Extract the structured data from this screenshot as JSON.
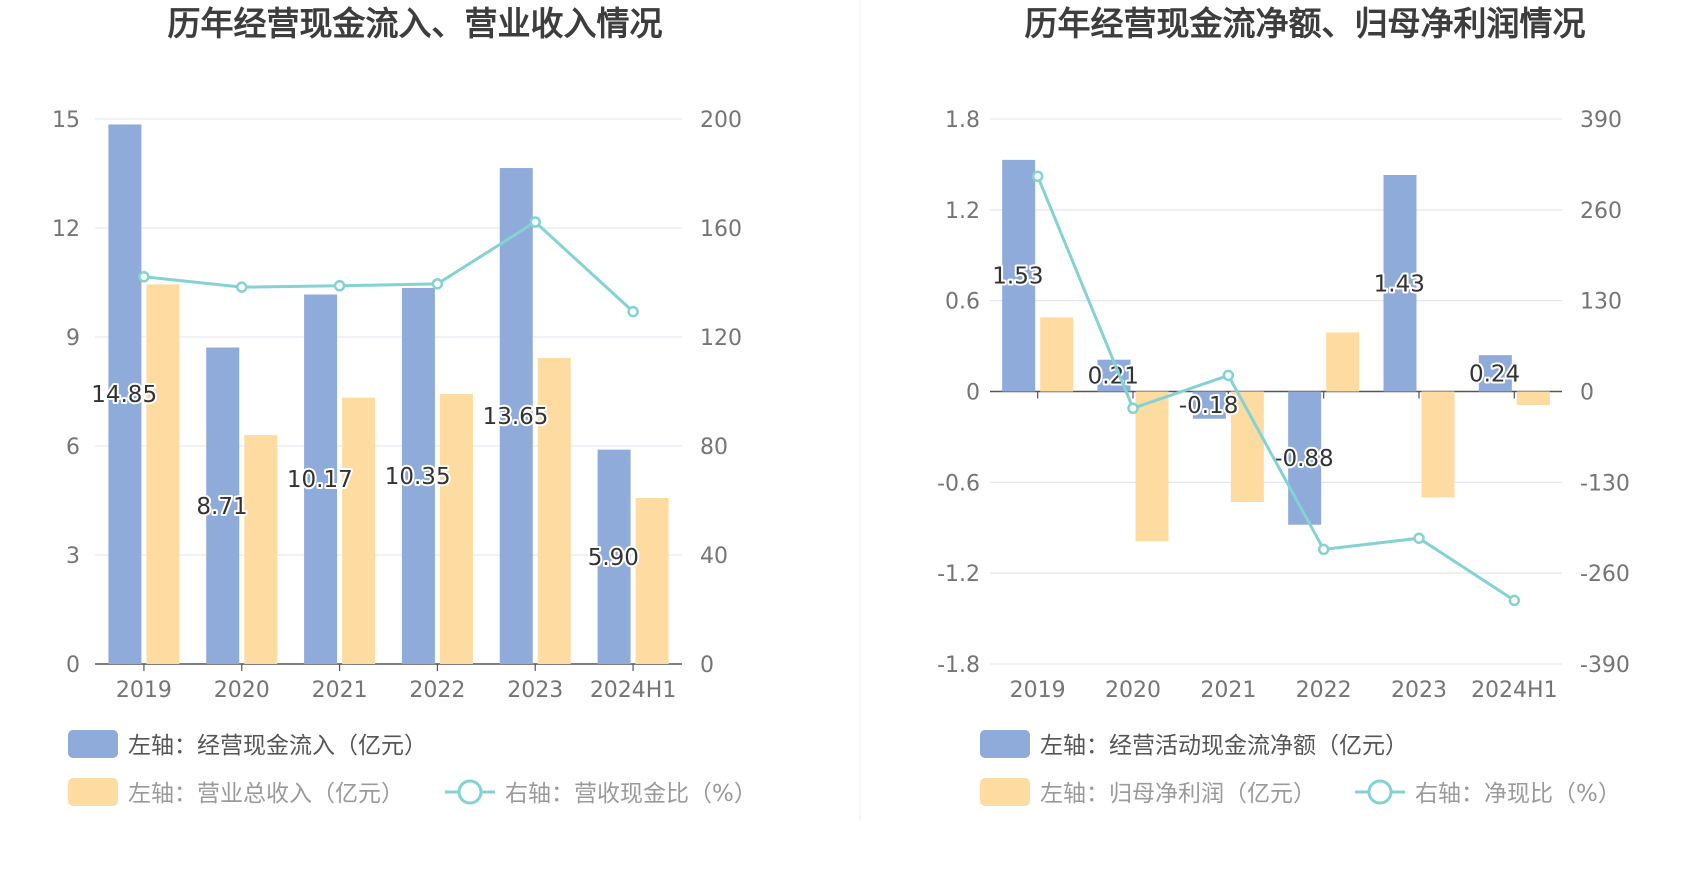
{
  "charts": [
    {
      "title": "历年经营现金流入、营业收入情况",
      "chart_data": {
        "type": "bar",
        "categories": [
          "2019",
          "2020",
          "2021",
          "2022",
          "2023",
          "2024H1"
        ],
        "left_axis": {
          "ylim": [
            0,
            15
          ],
          "ticks": [
            "0",
            "3",
            "6",
            "9",
            "12",
            "15"
          ]
        },
        "right_axis": {
          "ylim": [
            0,
            200
          ],
          "ticks": [
            "0",
            "40",
            "80",
            "120",
            "160",
            "200"
          ]
        },
        "series": [
          {
            "name": "左轴：经营现金流入（亿元）",
            "type": "bar",
            "axis": "left",
            "values": [
              14.85,
              8.71,
              10.17,
              10.35,
              13.65,
              5.9
            ],
            "labels": [
              "14.85",
              "8.71",
              "10.17",
              "10.35",
              "13.65",
              "5.90"
            ]
          },
          {
            "name": "左轴：营业总收入（亿元）",
            "type": "bar",
            "axis": "left",
            "values": [
              10.45,
              6.3,
              7.33,
              7.43,
              8.42,
              4.57
            ]
          },
          {
            "name": "右轴：营收现金比（%）",
            "type": "line",
            "axis": "right",
            "values": [
              142.1,
              138.3,
              138.8,
              139.5,
              162.2,
              129.3
            ]
          }
        ],
        "grid": true,
        "legend_position": "bottom"
      }
    },
    {
      "title": "历年经营现金流净额、归母净利润情况",
      "chart_data": {
        "type": "bar",
        "categories": [
          "2019",
          "2020",
          "2021",
          "2022",
          "2023",
          "2024H1"
        ],
        "left_axis": {
          "ylim": [
            -1.8,
            1.8
          ],
          "ticks": [
            "-1.8",
            "-1.2",
            "-0.6",
            "0",
            "0.6",
            "1.2",
            "1.8"
          ]
        },
        "right_axis": {
          "ylim": [
            -390,
            390
          ],
          "ticks": [
            "-390",
            "-260",
            "-130",
            "0",
            "130",
            "260",
            "390"
          ]
        },
        "series": [
          {
            "name": "左轴：经营活动现金流净额（亿元）",
            "type": "bar",
            "axis": "left",
            "values": [
              1.53,
              0.21,
              -0.18,
              -0.88,
              1.43,
              0.24
            ],
            "labels": [
              "1.53",
              "0.21",
              "-0.18",
              "-0.88",
              "1.43",
              "0.24"
            ]
          },
          {
            "name": "左轴：归母净利润（亿元）",
            "type": "bar",
            "axis": "left",
            "values": [
              0.49,
              -0.99,
              -0.73,
              0.39,
              -0.7,
              -0.09
            ]
          },
          {
            "name": "右轴：净现比（%）",
            "type": "line",
            "axis": "right",
            "values": [
              308,
              -24,
              23,
              -226,
              -210,
              -299
            ]
          }
        ],
        "grid": true,
        "legend_position": "bottom"
      }
    }
  ],
  "colors": {
    "bar1": "#8eabda",
    "bar2": "#fedba0",
    "line": "#84d2d4",
    "grid": "#e1e5f0",
    "axis": "#555555",
    "tick_text": "#757575",
    "title": "#3d3d3d",
    "divider": "#eeeeee"
  }
}
